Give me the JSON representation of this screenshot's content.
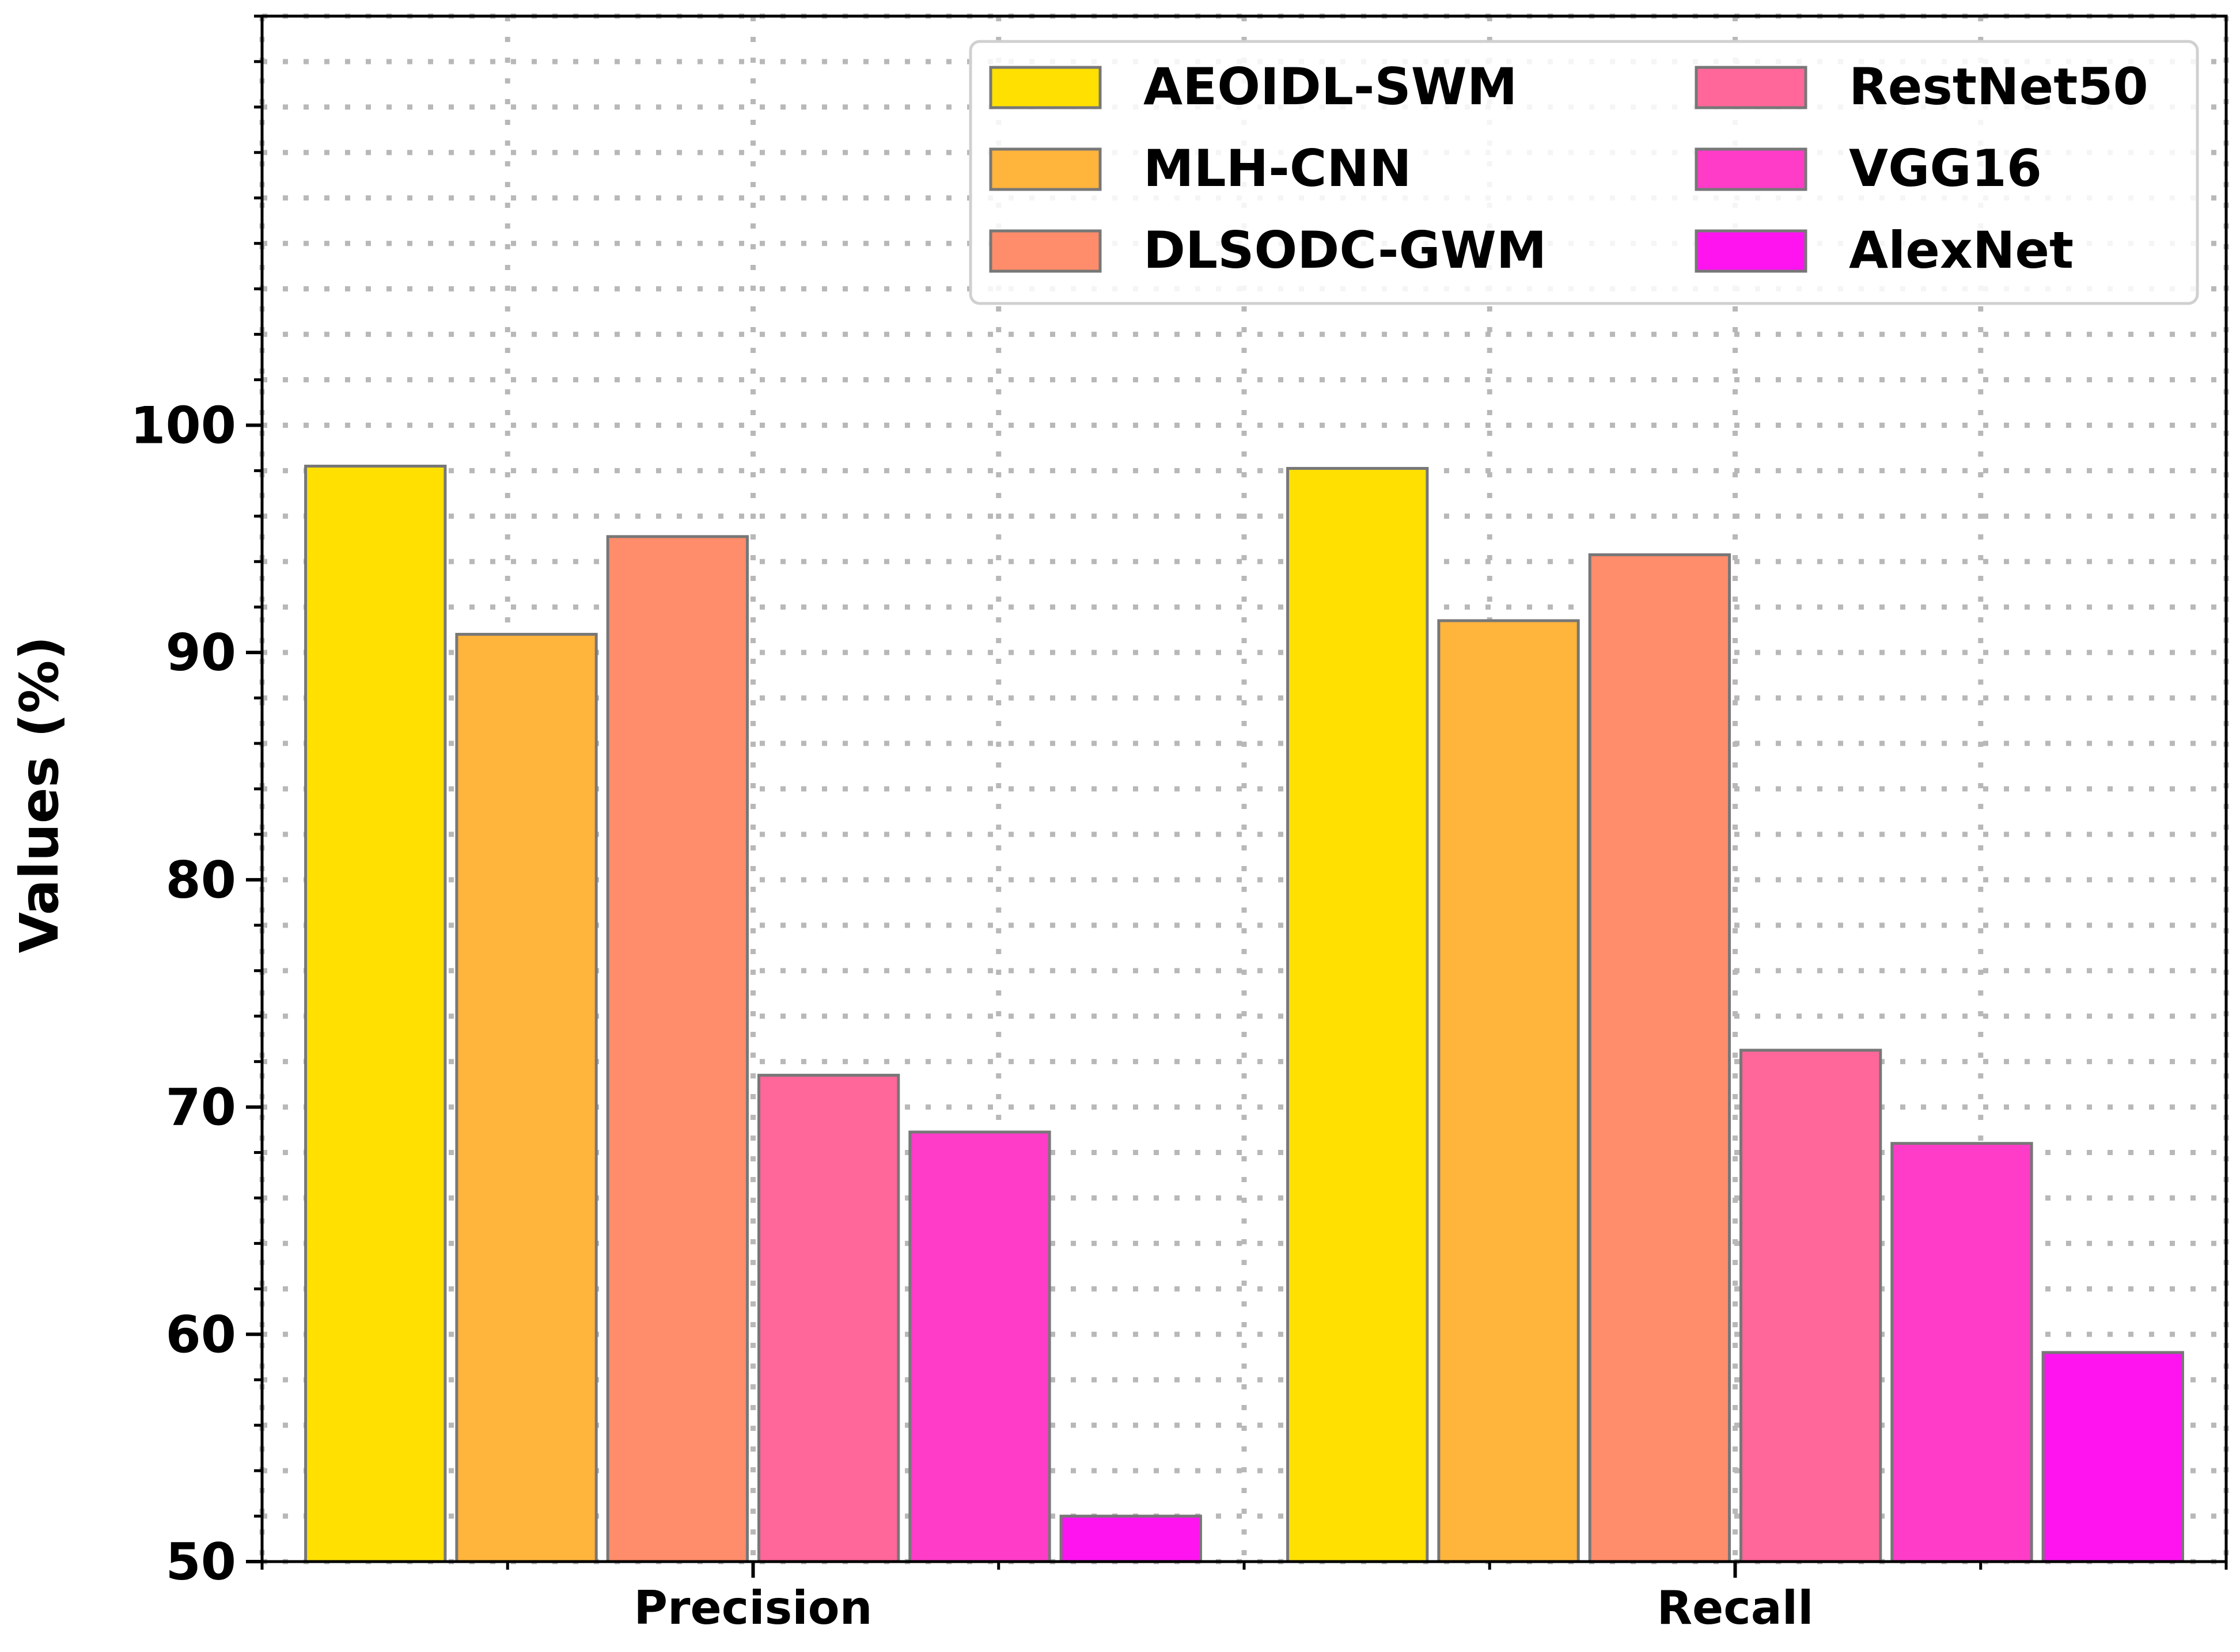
{
  "chart_data": {
    "type": "bar",
    "title": "",
    "xlabel": "",
    "ylabel": "Values (%)",
    "ylim": [
      50,
      118
    ],
    "yticks": [
      50,
      60,
      70,
      80,
      90,
      100
    ],
    "grid": true,
    "legend_position": "top-right",
    "categories": [
      "Precision",
      "Recall"
    ],
    "series": [
      {
        "name": "AEOIDL-SWM",
        "color": "#FFE000",
        "values": [
          98.2,
          98.1
        ]
      },
      {
        "name": "MLH-CNN",
        "color": "#FFB43C",
        "values": [
          90.8,
          91.4
        ]
      },
      {
        "name": "DLSODC-GWM",
        "color": "#FF8C6A",
        "values": [
          95.1,
          94.3
        ]
      },
      {
        "name": "RestNet50",
        "color": "#FF6699",
        "values": [
          71.4,
          72.5
        ]
      },
      {
        "name": "VGG16",
        "color": "#FF3CC8",
        "values": [
          68.9,
          68.4
        ]
      },
      {
        "name": "AlexNet",
        "color": "#FF14F0",
        "values": [
          52.0,
          59.2
        ]
      }
    ]
  }
}
